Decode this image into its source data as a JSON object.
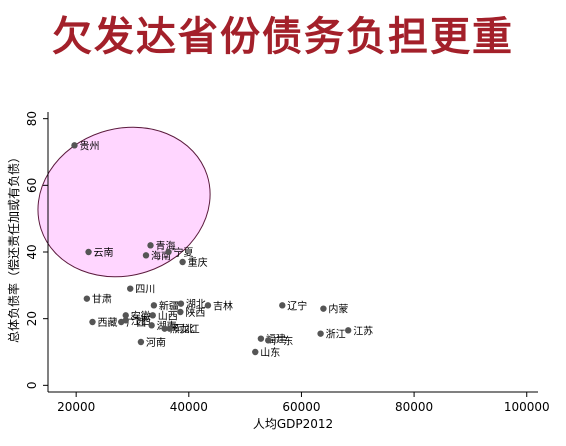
{
  "slide": {
    "title": "欠发达省份债务负担更重"
  },
  "colors": {
    "title": "#a3202a",
    "highlight_fill": "#ffd6ff",
    "highlight_stroke": "#5b1b3d",
    "marker": "#555555"
  },
  "chart_data": {
    "type": "scatter",
    "xlabel": "人均GDP2012",
    "ylabel": "总体负债率（偿还责任加或有负债）",
    "xlim": [
      15000,
      102000
    ],
    "ylim": [
      -2,
      82
    ],
    "xticks": [
      20000,
      40000,
      60000,
      80000,
      100000
    ],
    "yticks": [
      0,
      20,
      40,
      60,
      80
    ],
    "grid": false,
    "highlight": {
      "shape": "ellipse",
      "description_free": true,
      "cx": 28500,
      "cy": 55,
      "rx": 15500,
      "ry": 22
    },
    "points": [
      {
        "name": "贵州",
        "x": 19700,
        "y": 72
      },
      {
        "name": "云南",
        "x": 22200,
        "y": 40
      },
      {
        "name": "青海",
        "x": 33200,
        "y": 42
      },
      {
        "name": "甘肃",
        "x": 21900,
        "y": 26
      },
      {
        "name": "广西",
        "x": 28000,
        "y": 19
      },
      {
        "name": "西藏",
        "x": 22900,
        "y": 19
      },
      {
        "name": "安徽",
        "x": 28800,
        "y": 21
      },
      {
        "name": "江西",
        "x": 28800,
        "y": 19.5
      },
      {
        "name": "四川",
        "x": 29600,
        "y": 29
      },
      {
        "name": "海南",
        "x": 32400,
        "y": 39
      },
      {
        "name": "宁夏",
        "x": 36400,
        "y": 40
      },
      {
        "name": "重庆",
        "x": 38900,
        "y": 37
      },
      {
        "name": "河南",
        "x": 31500,
        "y": 13
      },
      {
        "name": "湖南",
        "x": 33400,
        "y": 18
      },
      {
        "name": "新疆",
        "x": 33800,
        "y": 24
      },
      {
        "name": "黑龙江",
        "x": 35700,
        "y": 17
      },
      {
        "name": "山西",
        "x": 33600,
        "y": 21
      },
      {
        "name": "河北",
        "x": 36600,
        "y": 17
      },
      {
        "name": "湖北",
        "x": 38600,
        "y": 24.5
      },
      {
        "name": "陕西",
        "x": 38500,
        "y": 22
      },
      {
        "name": "吉林",
        "x": 43400,
        "y": 24
      },
      {
        "name": "辽宁",
        "x": 56600,
        "y": 24
      },
      {
        "name": "内蒙",
        "x": 63900,
        "y": 23
      },
      {
        "name": "福建",
        "x": 52800,
        "y": 14
      },
      {
        "name": "广东",
        "x": 54100,
        "y": 13.5
      },
      {
        "name": "山东",
        "x": 51800,
        "y": 10
      },
      {
        "name": "浙江",
        "x": 63400,
        "y": 15.5
      },
      {
        "name": "江苏",
        "x": 68300,
        "y": 16.5
      }
    ]
  }
}
